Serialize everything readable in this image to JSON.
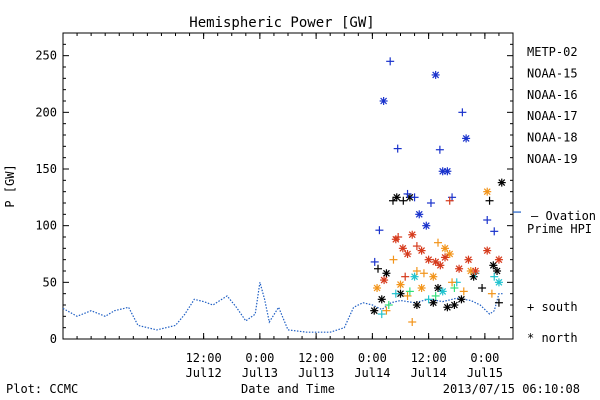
{
  "chart_data": {
    "type": "scatter",
    "title": "Hemispheric Power [GW]",
    "xlabel": "Date and Time",
    "ylabel": "P [GW]",
    "ylim": [
      0,
      270
    ],
    "xlim": [
      "2013-07-11T06:00",
      "2013-07-15T06:00"
    ],
    "y_ticks": [
      0,
      50,
      100,
      150,
      200,
      250
    ],
    "x_ticks": [
      {
        "t": "2013-07-12T12:00",
        "label": "12:00\nJul12"
      },
      {
        "t": "2013-07-13T00:00",
        "label": "0:00\nJul13"
      },
      {
        "t": "2013-07-13T12:00",
        "label": "12:00\nJul13"
      },
      {
        "t": "2013-07-14T00:00",
        "label": "0:00\nJul14"
      },
      {
        "t": "2013-07-14T12:00",
        "label": "12:00\nJul14"
      },
      {
        "t": "2013-07-15T00:00",
        "label": "0:00\nJul15"
      }
    ],
    "legend_position": "right",
    "series": [
      {
        "name": "METP-02",
        "color": "#000000",
        "points": [
          {
            "t": "2013-07-14T01:12",
            "v": 62,
            "m": "+"
          },
          {
            "t": "2013-07-14T03:00",
            "v": 58,
            "m": "*"
          },
          {
            "t": "2013-07-14T04:24",
            "v": 122,
            "m": "+"
          },
          {
            "t": "2013-07-14T05:12",
            "v": 125,
            "m": "*"
          },
          {
            "t": "2013-07-14T06:36",
            "v": 122,
            "m": "+"
          },
          {
            "t": "2013-07-14T08:00",
            "v": 125,
            "m": "*"
          },
          {
            "t": "2013-07-14T02:00",
            "v": 35,
            "m": "*"
          },
          {
            "t": "2013-07-14T06:00",
            "v": 40,
            "m": "*"
          },
          {
            "t": "2013-07-14T09:30",
            "v": 30,
            "m": "*"
          },
          {
            "t": "2013-07-14T13:00",
            "v": 32,
            "m": "*"
          },
          {
            "t": "2013-07-14T16:00",
            "v": 28,
            "m": "*"
          },
          {
            "t": "2013-07-14T19:00",
            "v": 35,
            "m": "*"
          },
          {
            "t": "2013-07-14T21:36",
            "v": 55,
            "m": "*"
          },
          {
            "t": "2013-07-14T23:24",
            "v": 45,
            "m": "+"
          },
          {
            "t": "2013-07-15T01:00",
            "v": 122,
            "m": "+"
          },
          {
            "t": "2013-07-15T01:48",
            "v": 65,
            "m": "*"
          },
          {
            "t": "2013-07-15T02:36",
            "v": 60,
            "m": "*"
          },
          {
            "t": "2013-07-15T03:00",
            "v": 32,
            "m": "+"
          },
          {
            "t": "2013-07-15T03:36",
            "v": 138,
            "m": "*"
          },
          {
            "t": "2013-07-14T00:24",
            "v": 25,
            "m": "*"
          },
          {
            "t": "2013-07-14T14:00",
            "v": 45,
            "m": "*"
          },
          {
            "t": "2013-07-14T17:30",
            "v": 30,
            "m": "*"
          }
        ]
      },
      {
        "name": "NOAA-15",
        "color": "#1a33cc",
        "points": [
          {
            "t": "2013-07-14T00:30",
            "v": 68,
            "m": "+"
          },
          {
            "t": "2013-07-14T02:24",
            "v": 210,
            "m": "*"
          },
          {
            "t": "2013-07-14T01:30",
            "v": 96,
            "m": "+"
          },
          {
            "t": "2013-07-14T03:48",
            "v": 245,
            "m": "+"
          },
          {
            "t": "2013-07-14T05:24",
            "v": 168,
            "m": "+"
          },
          {
            "t": "2013-07-14T07:30",
            "v": 128,
            "m": "+"
          },
          {
            "t": "2013-07-14T09:00",
            "v": 125,
            "m": "+"
          },
          {
            "t": "2013-07-14T11:30",
            "v": 100,
            "m": "*"
          },
          {
            "t": "2013-07-14T12:30",
            "v": 120,
            "m": "+"
          },
          {
            "t": "2013-07-14T13:30",
            "v": 233,
            "m": "*"
          },
          {
            "t": "2013-07-14T14:24",
            "v": 167,
            "m": "+"
          },
          {
            "t": "2013-07-14T15:00",
            "v": 148,
            "m": "*"
          },
          {
            "t": "2013-07-14T16:00",
            "v": 148,
            "m": "*"
          },
          {
            "t": "2013-07-14T19:12",
            "v": 200,
            "m": "+"
          },
          {
            "t": "2013-07-14T20:00",
            "v": 177,
            "m": "*"
          },
          {
            "t": "2013-07-14T17:00",
            "v": 125,
            "m": "+"
          },
          {
            "t": "2013-07-15T00:30",
            "v": 105,
            "m": "+"
          },
          {
            "t": "2013-07-15T02:00",
            "v": 95,
            "m": "+"
          },
          {
            "t": "2013-07-14T10:00",
            "v": 110,
            "m": "*"
          }
        ]
      },
      {
        "name": "NOAA-16",
        "color": "#22c3cf",
        "points": [
          {
            "t": "2013-07-14T02:00",
            "v": 22,
            "m": "+"
          },
          {
            "t": "2013-07-14T05:00",
            "v": 40,
            "m": "+"
          },
          {
            "t": "2013-07-14T09:00",
            "v": 55,
            "m": "*"
          },
          {
            "t": "2013-07-14T12:00",
            "v": 35,
            "m": "+"
          },
          {
            "t": "2013-07-14T15:00",
            "v": 42,
            "m": "*"
          },
          {
            "t": "2013-07-14T18:00",
            "v": 50,
            "m": "+"
          },
          {
            "t": "2013-07-14T22:00",
            "v": 58,
            "m": "+"
          },
          {
            "t": "2013-07-15T02:00",
            "v": 55,
            "m": "+"
          },
          {
            "t": "2013-07-15T03:00",
            "v": 50,
            "m": "*"
          }
        ]
      },
      {
        "name": "NOAA-17",
        "color": "#33e07a",
        "points": [
          {
            "t": "2013-07-14T03:30",
            "v": 30,
            "m": "+"
          },
          {
            "t": "2013-07-14T08:00",
            "v": 42,
            "m": "+"
          },
          {
            "t": "2013-07-14T13:30",
            "v": 38,
            "m": "+"
          },
          {
            "t": "2013-07-14T17:30",
            "v": 45,
            "m": "+"
          }
        ]
      },
      {
        "name": "NOAA-18",
        "color": "#f2941a",
        "points": [
          {
            "t": "2013-07-14T01:00",
            "v": 45,
            "m": "*"
          },
          {
            "t": "2013-07-14T03:00",
            "v": 25,
            "m": "+"
          },
          {
            "t": "2013-07-14T04:30",
            "v": 70,
            "m": "+"
          },
          {
            "t": "2013-07-14T06:00",
            "v": 48,
            "m": "*"
          },
          {
            "t": "2013-07-14T07:30",
            "v": 38,
            "m": "+"
          },
          {
            "t": "2013-07-14T08:30",
            "v": 15,
            "m": "+"
          },
          {
            "t": "2013-07-14T10:30",
            "v": 45,
            "m": "*"
          },
          {
            "t": "2013-07-14T11:00",
            "v": 58,
            "m": "+"
          },
          {
            "t": "2013-07-14T13:00",
            "v": 55,
            "m": "*"
          },
          {
            "t": "2013-07-14T14:00",
            "v": 85,
            "m": "+"
          },
          {
            "t": "2013-07-14T15:30",
            "v": 80,
            "m": "*"
          },
          {
            "t": "2013-07-14T17:00",
            "v": 50,
            "m": "+"
          },
          {
            "t": "2013-07-14T19:30",
            "v": 42,
            "m": "+"
          },
          {
            "t": "2013-07-14T21:00",
            "v": 60,
            "m": "*"
          },
          {
            "t": "2013-07-15T00:30",
            "v": 130,
            "m": "*"
          },
          {
            "t": "2013-07-15T01:30",
            "v": 40,
            "m": "+"
          },
          {
            "t": "2013-07-14T09:30",
            "v": 60,
            "m": "+"
          },
          {
            "t": "2013-07-14T16:30",
            "v": 75,
            "m": "*"
          }
        ]
      },
      {
        "name": "NOAA-19",
        "color": "#d63a1c",
        "points": [
          {
            "t": "2013-07-14T02:30",
            "v": 52,
            "m": "*"
          },
          {
            "t": "2013-07-14T05:00",
            "v": 88,
            "m": "*"
          },
          {
            "t": "2013-07-14T05:30",
            "v": 90,
            "m": "+"
          },
          {
            "t": "2013-07-14T06:30",
            "v": 80,
            "m": "*"
          },
          {
            "t": "2013-07-14T07:30",
            "v": 75,
            "m": "*"
          },
          {
            "t": "2013-07-14T08:30",
            "v": 92,
            "m": "*"
          },
          {
            "t": "2013-07-14T09:30",
            "v": 82,
            "m": "+"
          },
          {
            "t": "2013-07-14T10:30",
            "v": 78,
            "m": "*"
          },
          {
            "t": "2013-07-14T12:00",
            "v": 70,
            "m": "*"
          },
          {
            "t": "2013-07-14T13:30",
            "v": 68,
            "m": "*"
          },
          {
            "t": "2013-07-14T14:30",
            "v": 65,
            "m": "*"
          },
          {
            "t": "2013-07-14T15:30",
            "v": 72,
            "m": "*"
          },
          {
            "t": "2013-07-14T16:30",
            "v": 122,
            "m": "+"
          },
          {
            "t": "2013-07-14T18:30",
            "v": 62,
            "m": "*"
          },
          {
            "t": "2013-07-14T20:30",
            "v": 70,
            "m": "*"
          },
          {
            "t": "2013-07-14T22:00",
            "v": 60,
            "m": "*"
          },
          {
            "t": "2013-07-15T00:30",
            "v": 78,
            "m": "*"
          },
          {
            "t": "2013-07-15T03:00",
            "v": 70,
            "m": "*"
          },
          {
            "t": "2013-07-14T07:00",
            "v": 55,
            "m": "+"
          }
        ]
      }
    ],
    "ovation_series": {
      "name": "Ovation Prime HPI",
      "color": "#1f5fc4",
      "points": [
        {
          "t": "2013-07-11T06:00",
          "v": 27
        },
        {
          "t": "2013-07-11T09:00",
          "v": 20
        },
        {
          "t": "2013-07-11T12:00",
          "v": 25
        },
        {
          "t": "2013-07-11T15:00",
          "v": 20
        },
        {
          "t": "2013-07-11T17:00",
          "v": 25
        },
        {
          "t": "2013-07-11T20:00",
          "v": 28
        },
        {
          "t": "2013-07-11T22:00",
          "v": 12
        },
        {
          "t": "2013-07-12T02:00",
          "v": 8
        },
        {
          "t": "2013-07-12T06:00",
          "v": 12
        },
        {
          "t": "2013-07-12T08:00",
          "v": 22
        },
        {
          "t": "2013-07-12T10:00",
          "v": 35
        },
        {
          "t": "2013-07-12T12:00",
          "v": 33
        },
        {
          "t": "2013-07-12T14:00",
          "v": 30
        },
        {
          "t": "2013-07-12T17:00",
          "v": 38
        },
        {
          "t": "2013-07-12T19:00",
          "v": 28
        },
        {
          "t": "2013-07-12T21:00",
          "v": 16
        },
        {
          "t": "2013-07-12T23:00",
          "v": 22
        },
        {
          "t": "2013-07-13T00:00",
          "v": 50
        },
        {
          "t": "2013-07-13T01:00",
          "v": 35
        },
        {
          "t": "2013-07-13T02:00",
          "v": 15
        },
        {
          "t": "2013-07-13T04:00",
          "v": 28
        },
        {
          "t": "2013-07-13T06:00",
          "v": 8
        },
        {
          "t": "2013-07-13T10:00",
          "v": 6
        },
        {
          "t": "2013-07-13T15:00",
          "v": 6
        },
        {
          "t": "2013-07-13T18:00",
          "v": 10
        },
        {
          "t": "2013-07-13T20:00",
          "v": 28
        },
        {
          "t": "2013-07-13T22:00",
          "v": 32
        },
        {
          "t": "2013-07-14T00:00",
          "v": 30
        },
        {
          "t": "2013-07-14T02:00",
          "v": 26
        },
        {
          "t": "2013-07-14T04:00",
          "v": 32
        },
        {
          "t": "2013-07-14T06:00",
          "v": 34
        },
        {
          "t": "2013-07-14T09:00",
          "v": 32
        },
        {
          "t": "2013-07-14T12:00",
          "v": 35
        },
        {
          "t": "2013-07-14T15:00",
          "v": 33
        },
        {
          "t": "2013-07-14T18:00",
          "v": 36
        },
        {
          "t": "2013-07-14T21:00",
          "v": 34
        },
        {
          "t": "2013-07-14T23:00",
          "v": 30
        },
        {
          "t": "2013-07-15T01:00",
          "v": 22
        },
        {
          "t": "2013-07-15T02:00",
          "v": 25
        },
        {
          "t": "2013-07-15T03:00",
          "v": 40
        },
        {
          "t": "2013-07-15T04:00",
          "v": 40
        }
      ]
    },
    "legend": {
      "entries": [
        "METP-02",
        "NOAA-15",
        "NOAA-16",
        "NOAA-17",
        "NOAA-18",
        "NOAA-19"
      ],
      "ovation_label_line1": "– Ovation",
      "ovation_label_line2": "Prime HPI",
      "south_label": "+ south",
      "north_label": "* north"
    },
    "footer": {
      "left": "Plot: CCMC",
      "right": "2013/07/15 06:10:08"
    }
  }
}
